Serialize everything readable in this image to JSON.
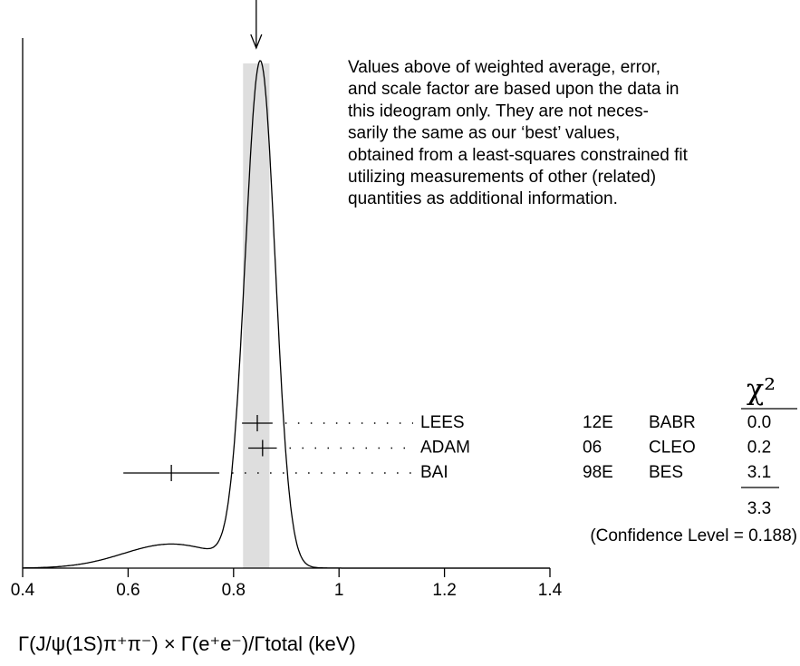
{
  "chart_data": {
    "type": "ideogram",
    "xlabel": "Γ(J/ψ(1S)π⁺π⁻) × Γ(e⁺e⁻)/Γtotal (keV)",
    "xlim": [
      0.4,
      1.4
    ],
    "xticks": [
      0.4,
      0.6,
      0.8,
      1,
      1.2,
      1.4
    ],
    "note": [
      "Values above of weighted average, error,",
      "and scale factor are based upon the data in",
      "this ideogram only.  They are not neces-",
      "sarily the same as our ‘best’ values,",
      "obtained from a least-squares constrained fit",
      "utilizing measurements of other (related)",
      "quantities as additional information."
    ],
    "categories": [
      "LEES",
      "ADAM",
      "BAI"
    ],
    "years": [
      "12E",
      "06",
      "98E"
    ],
    "experiments": [
      "BABR",
      "CLEO",
      "BES"
    ],
    "values": [
      0.845,
      0.855,
      0.682
    ],
    "errors": [
      0.029,
      0.027,
      0.091
    ],
    "average": {
      "value": 0.843,
      "error": 0.025
    },
    "chi2": {
      "header": "χ²",
      "values": [
        0,
        0.2,
        3.1
      ],
      "value_labels": [
        "0.0",
        "0.2",
        "3.1"
      ],
      "total": 3.3,
      "confidence": "(Confidence Level = 0.188)"
    }
  }
}
